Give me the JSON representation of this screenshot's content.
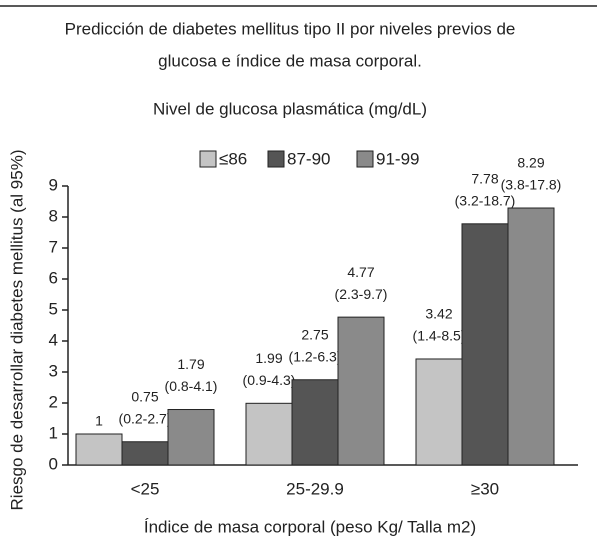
{
  "chart_data": {
    "type": "bar",
    "title": "Predicción de diabetes mellitus tipo II por niveles previos de",
    "subtitle": "glucosa e índice de masa corporal.",
    "legend_title": "Nivel de glucosa plasmática (mg/dL)",
    "x_label": "Índice de masa corporal (peso Kg/ Talla m2)",
    "y_label": "Riesgo de desarrollar diabetes mellitus (al 95%)",
    "categories": [
      "<25",
      "25-29.9",
      "≥30"
    ],
    "series": [
      {
        "name": "≤86",
        "color": "#c4c4c4",
        "values": [
          1,
          1.99,
          3.42
        ],
        "ci": [
          null,
          "(0.9-4.3)",
          "(1.4-8.5)"
        ]
      },
      {
        "name": "87-90",
        "color": "#555555",
        "values": [
          0.75,
          2.75,
          7.78
        ],
        "ci": [
          "(0.2-2.7)",
          "(1.2-6.3)",
          "(3.2-18.7)"
        ]
      },
      {
        "name": "91-99",
        "color": "#8a8a8a",
        "values": [
          1.79,
          4.77,
          8.29
        ],
        "ci": [
          "(0.8-4.1)",
          "(2.3-9.7)",
          "(3.8-17.8)"
        ]
      }
    ],
    "ylim": [
      0,
      9
    ],
    "yticks": [
      0,
      1,
      2,
      3,
      4,
      5,
      6,
      7,
      8,
      9
    ],
    "legend": "top"
  }
}
